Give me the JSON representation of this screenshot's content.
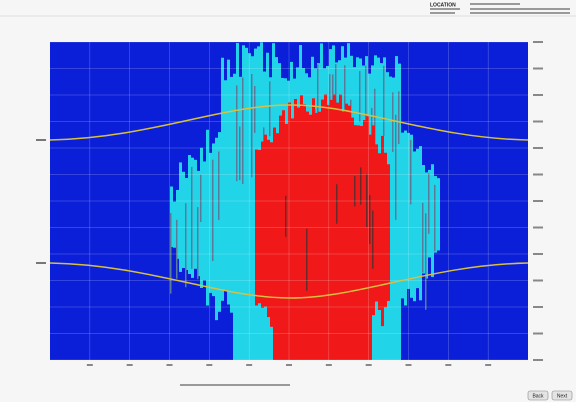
{
  "header": {
    "title": "LOCATION"
  },
  "buttons": [
    "Back",
    "Next"
  ]
}
